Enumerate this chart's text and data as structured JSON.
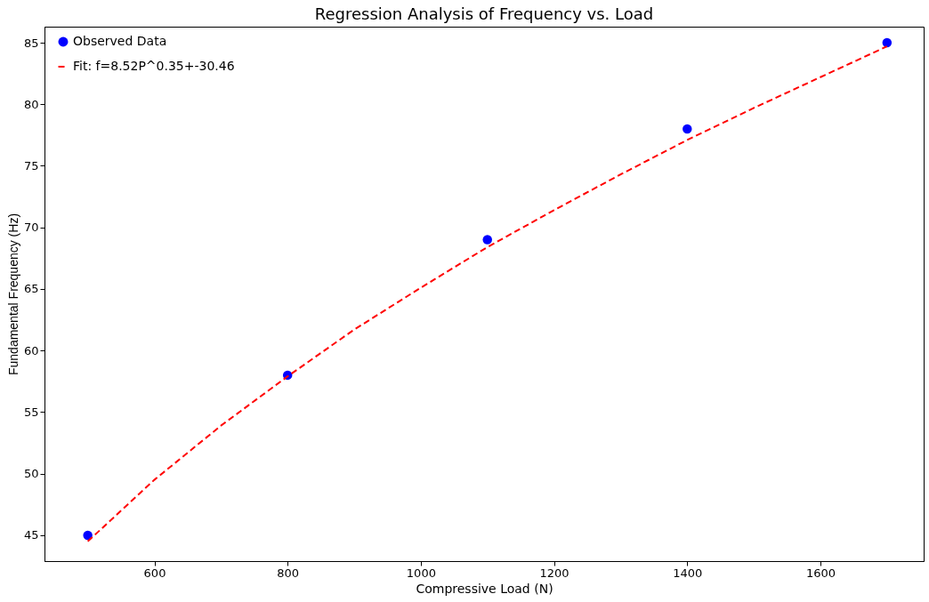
{
  "chart_data": {
    "type": "scatter",
    "title": "Regression Analysis of Frequency vs. Load",
    "xlabel": "Compressive Load (N)",
    "ylabel": "Fundamental Frequency (Hz)",
    "xlim": [
      435,
      1755
    ],
    "ylim": [
      42.9,
      86.3
    ],
    "xticks": [
      600,
      800,
      1000,
      1200,
      1400,
      1600
    ],
    "yticks": [
      45,
      50,
      55,
      60,
      65,
      70,
      75,
      80,
      85
    ],
    "grid": false,
    "legend": "top left",
    "series": [
      {
        "name": "Observed Data",
        "type": "scatter",
        "color": "#0000ff",
        "marker": "circle",
        "x": [
          500,
          800,
          1100,
          1400,
          1700
        ],
        "values": [
          45,
          58,
          69,
          78,
          85
        ]
      },
      {
        "name": "Fit: f=8.52P^0.35+-30.46",
        "type": "line",
        "color": "#ff0000",
        "line_style": "dashed",
        "marker": "none",
        "x": [
          500,
          600,
          700,
          800,
          900,
          1000,
          1100,
          1200,
          1300,
          1400,
          1500,
          1600,
          1700
        ],
        "values": [
          44.5,
          49.5,
          53.9,
          57.9,
          61.7,
          65.1,
          68.4,
          71.4,
          74.3,
          77.1,
          79.7,
          82.2,
          84.7
        ]
      }
    ]
  }
}
